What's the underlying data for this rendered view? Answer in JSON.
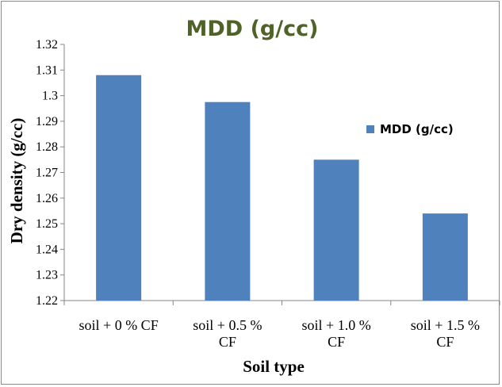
{
  "chart_data": {
    "type": "bar",
    "title": "MDD (g/cc)",
    "xlabel": "Soil type",
    "ylabel": "Dry density (g/cc)",
    "categories": [
      [
        "soil + 0 % CF"
      ],
      [
        "soil + 0.5 %",
        "CF"
      ],
      [
        "soil + 1.0 %",
        "CF"
      ],
      [
        "soil + 1.5 %",
        "CF"
      ]
    ],
    "series": [
      {
        "name": "MDD (g/cc)",
        "values": [
          1.308,
          1.2975,
          1.275,
          1.254
        ],
        "color": "#4f81bd"
      }
    ],
    "ylim": [
      1.22,
      1.32
    ],
    "yticks": [
      "1.22",
      "1.23",
      "1.24",
      "1.25",
      "1.26",
      "1.27",
      "1.28",
      "1.29",
      "1.3",
      "1.31",
      "1.32"
    ],
    "grid": false,
    "legend_position": "right"
  }
}
